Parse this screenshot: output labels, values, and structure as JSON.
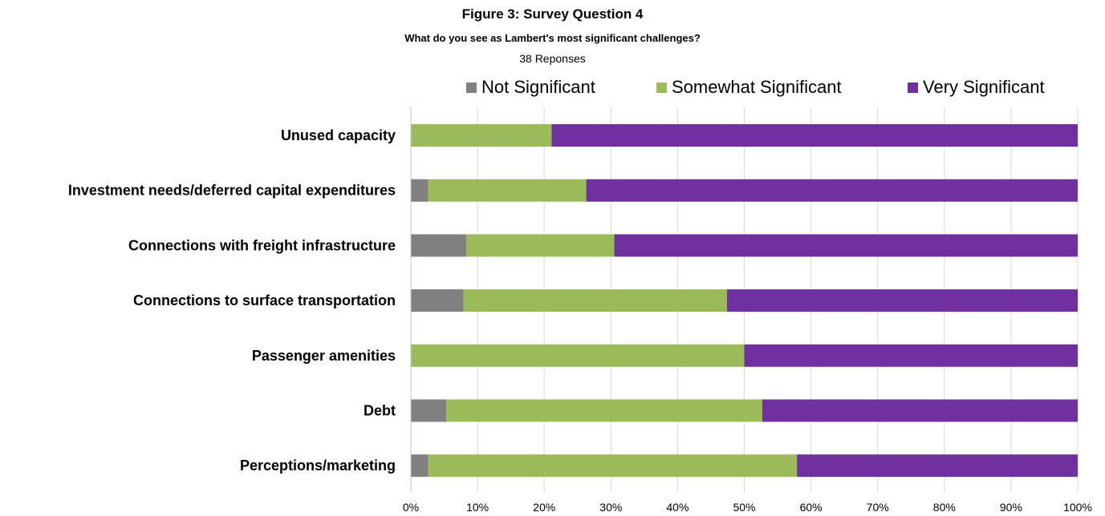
{
  "chart_data": {
    "type": "bar",
    "orientation": "horizontal",
    "stacked": "percent",
    "title": "Figure 3: Survey Question 4",
    "subtitle": "What do you see as Lambert's most significant challenges?",
    "note": "38 Reponses",
    "categories": [
      "Unused capacity",
      "Investment needs/deferred capital expenditures",
      "Connections with freight infrastructure",
      "Connections to surface transportation",
      "Passenger amenities",
      "Debt",
      "Perceptions/marketing"
    ],
    "series": [
      {
        "name": "Not Significant",
        "color": "#808080",
        "values": [
          0,
          2.6,
          8.3,
          7.9,
          0,
          5.3,
          2.6
        ]
      },
      {
        "name": "Somewhat Significant",
        "color": "#9bbb59",
        "values": [
          21.1,
          23.7,
          22.2,
          39.5,
          50.0,
          47.4,
          55.3
        ]
      },
      {
        "name": "Very Significant",
        "color": "#7030a0",
        "values": [
          78.9,
          73.7,
          69.5,
          52.6,
          50.0,
          47.3,
          42.1
        ]
      }
    ],
    "xlim": [
      0,
      100
    ],
    "xticks": [
      "0%",
      "10%",
      "20%",
      "30%",
      "40%",
      "50%",
      "60%",
      "70%",
      "80%",
      "90%",
      "100%"
    ],
    "grid": true,
    "legend_position": "top"
  }
}
